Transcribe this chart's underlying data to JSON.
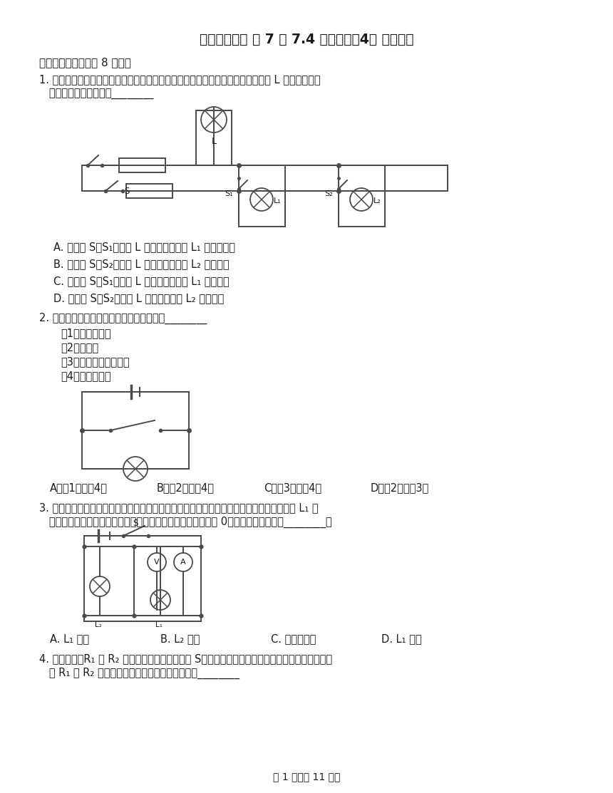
{
  "title": "沪教版九年级 第 7 章 7.4 并联电路（4） 故障分析",
  "background_color": "#ffffff",
  "text_color": "#1a1a1a",
  "section1_header": "一、单项选择题（共 8 小题）",
  "q1_text_line1": "1. 小明家火线上的熔丝熔断。小明检查时，断开所有的开关，将一只完好的白炽灯 L 接到图所示位",
  "q1_text_line2": "   置。下列说法正确的是________",
  "q1_A": "A. 只闭合 S、S₁，若灯 L 正常发光，说明 L₁ 支路无故障",
  "q1_B": "B. 只闭合 S、S₂，若灯 L 正常发光，说明 L₂ 支路短路",
  "q1_C": "C. 只闭合 S、S₁，若灯 L 发光较暗，说明 L₁ 支路断路",
  "q1_D": "D. 只闭合 S、S₂，若灯 L 不发光，说明 L₂ 支路短路",
  "q2_text": "2. 如图所示，当开关闭合时，发生的现象是________",
  "q2_1": "（1）灯正常发光",
  "q2_2": "（2）灯不亮",
  "q2_3": "（3）电源可能会被烧坏",
  "q2_4": "（4）灯会被烧坏",
  "q2_A": "A．（1）和（4）",
  "q2_B": "B．（2）和（4）",
  "q2_C": "C．（3）和（4）",
  "q2_D": "D．（2）和（3）",
  "q3_text_line1": "3. 如图所示电路，当闭合开关后两灯都不亮。为了检测电路故障，小明将电压表接在小灯泡 L₁ 的",
  "q3_text_line2": "   两端，闭合开关，发现电压表示数较大，而电流表示数几乎为 0，则电路故障可能是________。",
  "q3_A": "A. L₁ 断路",
  "q3_B": "B. L₂ 断路",
  "q3_C": "C. 电流表断路",
  "q3_D": "D. L₁ 短路",
  "q4_text_line1": "4. 如图所示，R₁ 和 R₂ 均为定值电阻，闭合开关 S，电流表指针明显偏转，电压表几乎无示数，如",
  "q4_text_line2": "   果 R₁ 或 R₂ 一处发生故障，则下列判断正确的是________",
  "footer": "第 1 页（共 11 页）"
}
